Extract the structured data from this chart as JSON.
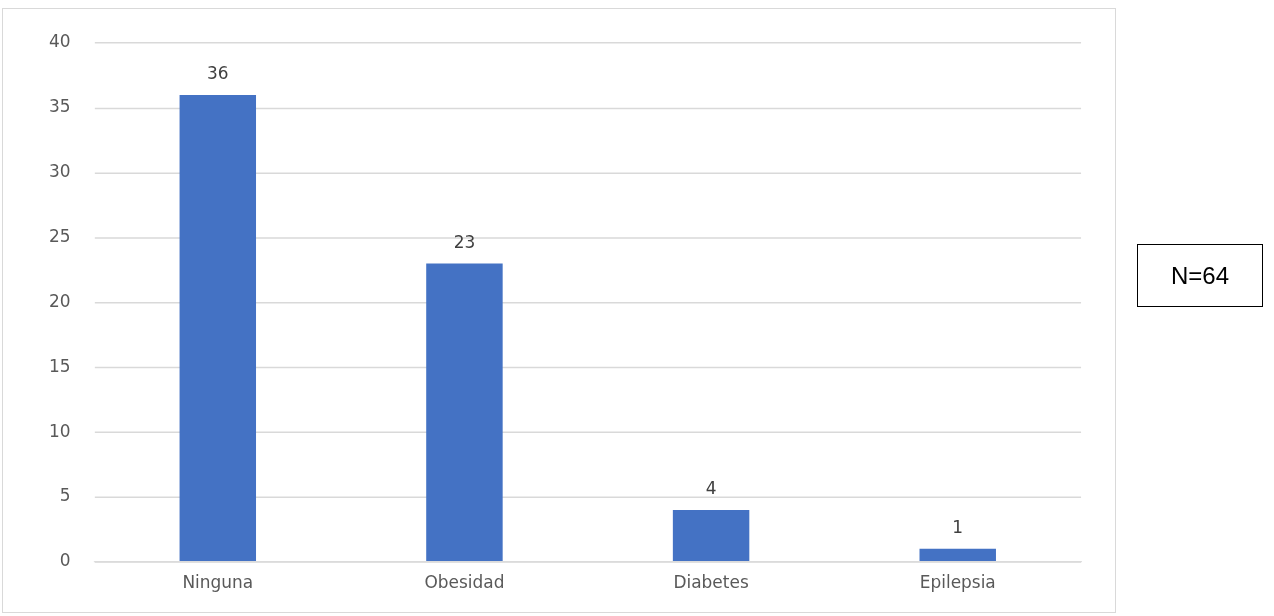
{
  "chart_data": {
    "type": "bar",
    "categories": [
      "Ninguna",
      "Obesidad",
      "Diabetes",
      "Epilepsia"
    ],
    "values": [
      36,
      23,
      4,
      1
    ],
    "color": "#4472c4",
    "ylim": [
      0,
      40
    ],
    "yticks": [
      0,
      5,
      10,
      15,
      20,
      25,
      30,
      35,
      40
    ],
    "grid": "y",
    "data_labels": true,
    "annotations": [
      "N=64"
    ]
  }
}
